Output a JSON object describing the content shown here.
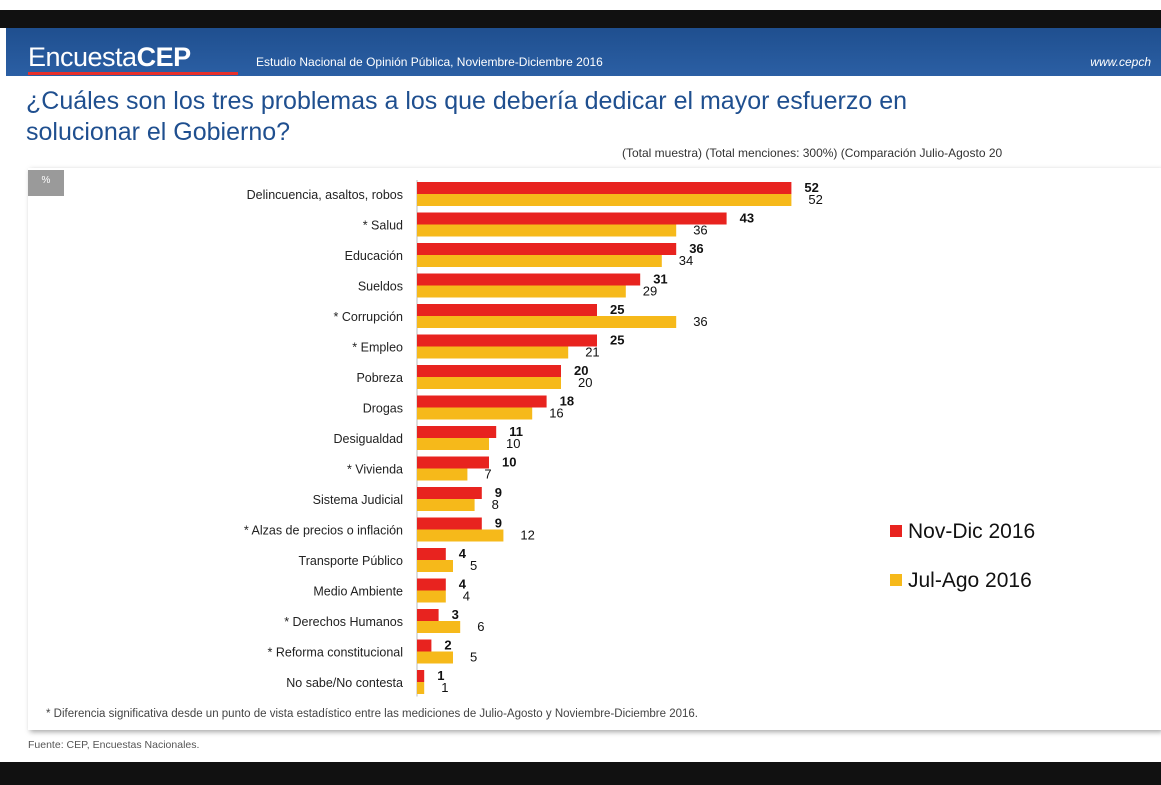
{
  "header": {
    "brand_light": "Encuesta",
    "brand_bold": "CEP",
    "subtitle": "Estudio Nacional de Opinión Pública, Noviembre-Diciembre 2016",
    "url": "www.cepch"
  },
  "question_line1": "¿Cuáles son los tres problemas a los que debería dedicar el mayor esfuerzo en",
  "question_line2": "solucionar el Gobierno?",
  "note": "(Total muestra) (Total menciones: 300%) (Comparación Julio-Agosto 20",
  "badge": "%",
  "footnote": "* Diferencia significativa desde un punto de vista estadístico entre las mediciones de Julio-Agosto y Noviembre-Diciembre 2016.",
  "source": "Fuente: CEP, Encuestas Nacionales.",
  "colors": {
    "nov_dic": "#e8231f",
    "jul_ago": "#f6b91a",
    "header_blue": "#1f4f8f"
  },
  "chart_data": {
    "type": "bar",
    "orientation": "horizontal",
    "categories": [
      "Delincuencia, asaltos, robos",
      "* Salud",
      "Educación",
      "Sueldos",
      "* Corrupción",
      "* Empleo",
      "Pobreza",
      "Drogas",
      "Desigualdad",
      "* Vivienda",
      "Sistema Judicial",
      "* Alzas de precios o inflación",
      "Transporte Público",
      "Medio Ambiente",
      "* Derechos Humanos",
      "* Reforma constitucional",
      "No sabe/No contesta"
    ],
    "series": [
      {
        "name": "Nov-Dic 2016",
        "color": "#e8231f",
        "values": [
          52,
          43,
          36,
          31,
          25,
          25,
          20,
          18,
          11,
          10,
          9,
          9,
          4,
          4,
          3,
          2,
          1
        ]
      },
      {
        "name": "Jul-Ago 2016",
        "color": "#f6b91a",
        "values": [
          52,
          36,
          34,
          29,
          36,
          21,
          20,
          16,
          10,
          7,
          8,
          12,
          5,
          4,
          6,
          5,
          1
        ]
      }
    ],
    "legend_position": "right"
  }
}
